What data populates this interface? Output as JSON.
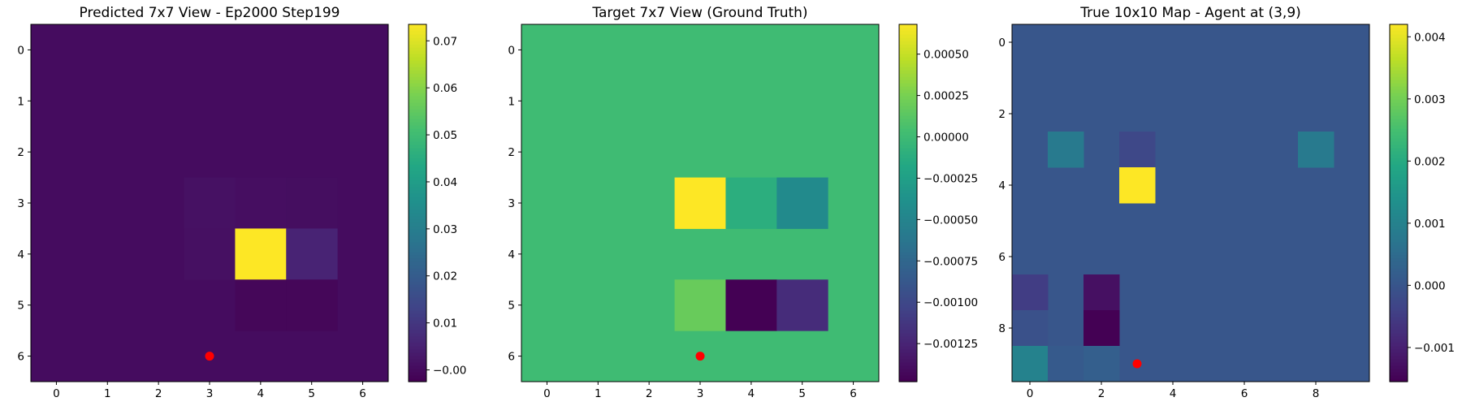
{
  "chart_data": [
    {
      "type": "heatmap",
      "title": "Predicted 7x7 View - Ep2000 Step199",
      "rows": 7,
      "cols": 7,
      "xticks": [
        0,
        1,
        2,
        3,
        4,
        5,
        6
      ],
      "yticks": [
        0,
        1,
        2,
        3,
        4,
        5,
        6
      ],
      "vmin": -0.0025,
      "vmax": 0.0735,
      "colorbar_ticks": [
        0.0,
        0.01,
        0.02,
        0.03,
        0.04,
        0.05,
        0.06,
        0.07
      ],
      "colorbar_labels": [
        "−0.00",
        "0.01",
        "0.02",
        "0.03",
        "0.04",
        "0.05",
        "0.06",
        "0.07"
      ],
      "default_value": 0.0,
      "cells": [
        {
          "row": 3,
          "col": 3,
          "value": 0.001
        },
        {
          "row": 3,
          "col": 4,
          "value": 0.0005
        },
        {
          "row": 3,
          "col": 5,
          "value": 0.0003
        },
        {
          "row": 4,
          "col": 3,
          "value": 0.0008
        },
        {
          "row": 4,
          "col": 4,
          "value": 0.0735
        },
        {
          "row": 4,
          "col": 5,
          "value": 0.005
        },
        {
          "row": 5,
          "col": 4,
          "value": -0.0012
        },
        {
          "row": 5,
          "col": 5,
          "value": -0.0012
        }
      ],
      "marker": {
        "x": 3,
        "y": 6,
        "color": "#ff0000"
      }
    },
    {
      "type": "heatmap",
      "title": "Target 7x7 View (Ground Truth)",
      "rows": 7,
      "cols": 7,
      "xticks": [
        0,
        1,
        2,
        3,
        4,
        5,
        6
      ],
      "yticks": [
        0,
        1,
        2,
        3,
        4,
        5,
        6
      ],
      "vmin": -0.00148,
      "vmax": 0.00068,
      "colorbar_ticks": [
        0.0005,
        0.00025,
        0.0,
        -0.00025,
        -0.0005,
        -0.00075,
        -0.001,
        -0.00125
      ],
      "colorbar_labels": [
        "0.00050",
        "0.00025",
        "0.00000",
        "−0.00025",
        "−0.00050",
        "−0.00075",
        "−0.00100",
        "−0.00125"
      ],
      "default_value": 0.0,
      "cells": [
        {
          "row": 3,
          "col": 3,
          "value": 0.00068
        },
        {
          "row": 3,
          "col": 4,
          "value": -0.00012
        },
        {
          "row": 3,
          "col": 5,
          "value": -0.00045
        },
        {
          "row": 5,
          "col": 3,
          "value": 0.00018
        },
        {
          "row": 5,
          "col": 4,
          "value": -0.00148
        },
        {
          "row": 5,
          "col": 5,
          "value": -0.0012
        }
      ],
      "marker": {
        "x": 3,
        "y": 6,
        "color": "#ff0000"
      }
    },
    {
      "type": "heatmap",
      "title": "True 10x10 Map - Agent at (3,9)",
      "rows": 10,
      "cols": 10,
      "xticks": [
        0,
        2,
        4,
        6,
        8
      ],
      "yticks": [
        0,
        2,
        4,
        6,
        8
      ],
      "vmin": -0.00155,
      "vmax": 0.0042,
      "colorbar_ticks": [
        0.004,
        0.003,
        0.002,
        0.001,
        0.0,
        -0.001
      ],
      "colorbar_labels": [
        "0.004",
        "0.003",
        "0.002",
        "0.001",
        "0.000",
        "−0.001"
      ],
      "default_value": 0.0,
      "cells": [
        {
          "row": 3,
          "col": 1,
          "value": 0.0008
        },
        {
          "row": 3,
          "col": 3,
          "value": -0.0003
        },
        {
          "row": 3,
          "col": 8,
          "value": 0.0008
        },
        {
          "row": 4,
          "col": 3,
          "value": 0.0042
        },
        {
          "row": 7,
          "col": 0,
          "value": -0.0005
        },
        {
          "row": 7,
          "col": 2,
          "value": -0.0013
        },
        {
          "row": 8,
          "col": 0,
          "value": -0.0001
        },
        {
          "row": 8,
          "col": 2,
          "value": -0.00155
        },
        {
          "row": 9,
          "col": 0,
          "value": 0.001
        },
        {
          "row": 9,
          "col": 1,
          "value": 0.0001
        },
        {
          "row": 9,
          "col": 2,
          "value": 0.0002
        }
      ],
      "marker": {
        "x": 3,
        "y": 9,
        "color": "#ff0000"
      }
    }
  ]
}
